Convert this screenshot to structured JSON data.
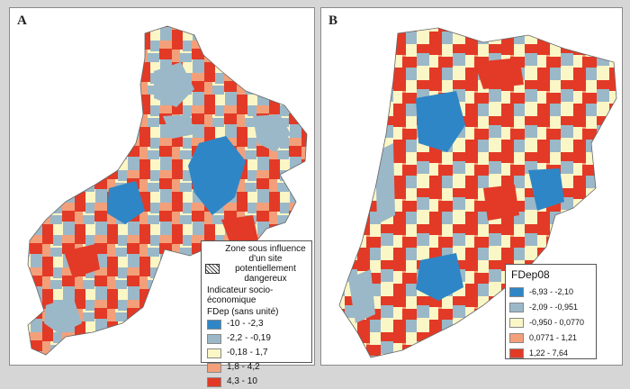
{
  "panels": {
    "a": {
      "letter": "A",
      "legend": {
        "zone_text": "Zone sous influence d'un site potentiellement dangereux",
        "indicator_title": "Indicateur socio-économique",
        "indicator_subtitle": "FDep (sans unité)",
        "classes": [
          {
            "label": "-10 - -2,3",
            "color": "#2f86c6"
          },
          {
            "label": "-2,2 - -0,19",
            "color": "#9bb8c8"
          },
          {
            "label": "-0,18 - 1,7",
            "color": "#fbf6c6"
          },
          {
            "label": "1,8 - 4,2",
            "color": "#f3a07a"
          },
          {
            "label": "4,3 - 10",
            "color": "#e23a26"
          }
        ]
      }
    },
    "b": {
      "letter": "B",
      "legend": {
        "title": "FDep08",
        "classes": [
          {
            "label": "-6,93 - -2,10",
            "color": "#2f86c6"
          },
          {
            "label": "-2,09 - -0,951",
            "color": "#9bb8c8"
          },
          {
            "label": "-0,950 - 0,0770",
            "color": "#fbf6c6"
          },
          {
            "label": "0,0771 - 1,21",
            "color": "#f3a07a"
          },
          {
            "label": "1,22 - 7,64",
            "color": "#e23a26"
          }
        ]
      }
    }
  }
}
